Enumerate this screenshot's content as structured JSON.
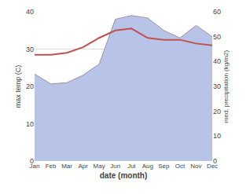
{
  "chart_data": {
    "type": "line",
    "categories": [
      "Jan",
      "Feb",
      "Mar",
      "Apr",
      "May",
      "Jun",
      "Jul",
      "Aug",
      "Sep",
      "Oct",
      "Nov",
      "Dec"
    ],
    "series": [
      {
        "type": "area",
        "color": "#b8c3e8",
        "axis": "y2",
        "values": [
          35.0,
          31.0,
          31.5,
          34.5,
          39.0,
          57.0,
          58.5,
          57.5,
          52.5,
          49.5,
          54.5,
          50.0
        ]
      },
      {
        "type": "line",
        "color": "#9e8fa0",
        "axis": "y2",
        "values": [
          35.0,
          31.0,
          31.5,
          34.5,
          39.0,
          57.0,
          58.5,
          57.5,
          52.5,
          49.5,
          54.5,
          50.0
        ]
      },
      {
        "type": "line",
        "color": "#c0504d",
        "values": [
          28.5,
          28.5,
          29.0,
          30.5,
          33.0,
          35.0,
          35.5,
          33.0,
          32.5,
          32.5,
          31.5,
          31.0
        ]
      }
    ],
    "xlabel": "date (month)",
    "ylabel": "max temp (C)",
    "y2label": "med. precipitation (kg/m2)",
    "ylim": [
      0,
      40
    ],
    "yticks": [
      0,
      10,
      20,
      30,
      40
    ],
    "y2lim": [
      0,
      60
    ],
    "y2ticks": [
      0,
      10,
      20,
      30,
      40,
      50,
      60
    ],
    "grid": true
  }
}
